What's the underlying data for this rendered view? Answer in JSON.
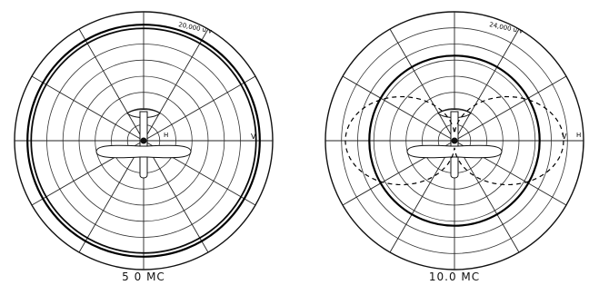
{
  "chart_data": [
    {
      "type": "polar",
      "caption": "5 0 MC",
      "field_label": "20,000 u v",
      "labels": {
        "H": "H",
        "V": "V"
      },
      "rings": 8,
      "spokes_deg": 30,
      "grid": true,
      "series": [
        {
          "pattern": "V",
          "line": "solid",
          "shape": "circle",
          "relative_radius": 0.9
        },
        {
          "pattern": "H",
          "line": "solid",
          "shape": "circle",
          "relative_radius": 0.87
        }
      ]
    },
    {
      "type": "polar",
      "caption": "10.0 MC",
      "field_label": "24,000 u v",
      "labels": {
        "H": "H",
        "V": "V"
      },
      "rings": 8,
      "spokes_deg": 30,
      "grid": true,
      "series": [
        {
          "pattern": "V",
          "line": "solid",
          "shape": "circle",
          "relative_radius": 0.66
        },
        {
          "pattern": "H",
          "line": "dashed",
          "shape": "figure-eight",
          "relative_radius": 0.5
        }
      ]
    }
  ]
}
